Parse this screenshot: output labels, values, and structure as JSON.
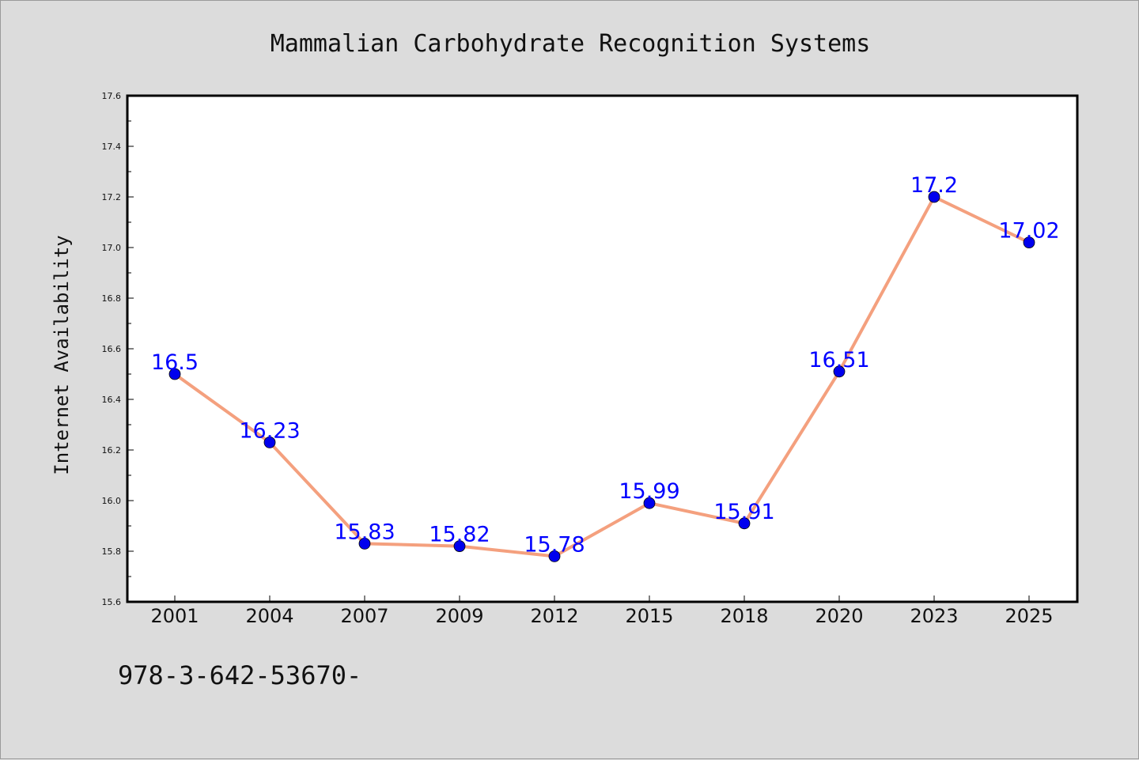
{
  "chart_data": {
    "type": "line",
    "title": "Mammalian Carbohydrate Recognition Systems",
    "xlabel": "",
    "ylabel": "Internet Availability",
    "categories": [
      "2001",
      "2004",
      "2007",
      "2009",
      "2012",
      "2015",
      "2018",
      "2020",
      "2023",
      "2025"
    ],
    "series": [
      {
        "values": [
          16.5,
          16.23,
          15.83,
          15.82,
          15.78,
          15.99,
          15.91,
          16.51,
          17.2,
          17.02
        ],
        "data_labels": [
          "16.5",
          "16.23",
          "15.83",
          "15.82",
          "15.78",
          "15.99",
          "15.91",
          "16.51",
          "17.2",
          "17.02"
        ],
        "line_color": "#f4a07e",
        "marker_color": "#0000ee"
      }
    ],
    "ylim": [
      15.6,
      17.6
    ],
    "y_ticks": [
      "15.6",
      "15.8",
      "16.0",
      "16.2",
      "16.4",
      "16.6",
      "16.8",
      "17.0",
      "17.2",
      "17.4",
      "17.6"
    ],
    "label_color": "#0000ff",
    "grid": false,
    "legend": "none"
  },
  "footer_text": "978-3-642-53670-"
}
